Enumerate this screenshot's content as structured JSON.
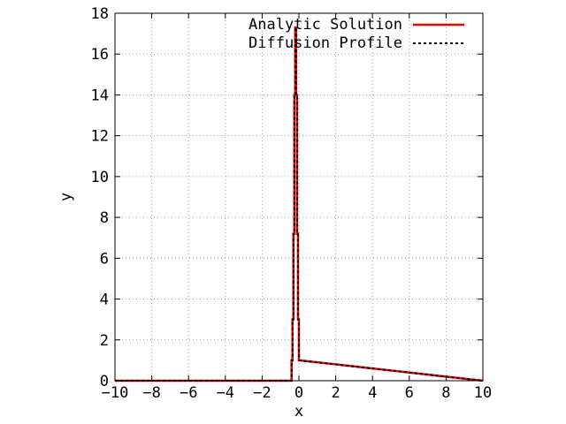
{
  "chart_data": {
    "type": "line",
    "title": "",
    "xlabel": "x",
    "ylabel": "y",
    "xlim": [
      -10,
      10
    ],
    "ylim": [
      0,
      18
    ],
    "xticks": [
      -10,
      -8,
      -6,
      -4,
      -2,
      0,
      2,
      4,
      6,
      8,
      10
    ],
    "yticks": [
      0,
      2,
      4,
      6,
      8,
      10,
      12,
      14,
      16,
      18
    ],
    "xtick_labels": [
      "−10",
      "−8",
      "−6",
      "−4",
      "−2",
      "0",
      "2",
      "4",
      "6",
      "8",
      "10"
    ],
    "ytick_labels": [
      "0",
      "2",
      "4",
      "6",
      "8",
      "10",
      "12",
      "14",
      "16",
      "18"
    ],
    "grid": true,
    "legend_position": "top-right",
    "series": [
      {
        "name": "Analytic Solution",
        "color": "#ee0000",
        "style": "solid",
        "x": [
          -10,
          -0.4,
          -0.4,
          -0.35,
          -0.35,
          -0.3,
          -0.3,
          -0.25,
          -0.25,
          -0.2,
          -0.2,
          -0.15,
          -0.15,
          -0.1,
          -0.1,
          -0.05,
          -0.05,
          0.0,
          0.0,
          10
        ],
        "y": [
          0,
          0,
          1.0,
          1.0,
          3.0,
          3.0,
          7.2,
          7.2,
          14.0,
          14.0,
          17.3,
          17.3,
          14.0,
          14.0,
          7.2,
          7.2,
          3.0,
          3.0,
          1.0,
          0
        ]
      },
      {
        "name": "Diffusion Profile",
        "color": "#000000",
        "style": "dashed",
        "x": [
          -10,
          -0.4,
          -0.4,
          -0.35,
          -0.35,
          -0.3,
          -0.3,
          -0.25,
          -0.25,
          -0.2,
          -0.2,
          -0.15,
          -0.15,
          -0.1,
          -0.1,
          -0.05,
          -0.05,
          0.0,
          0.0,
          10
        ],
        "y": [
          0,
          0,
          1.0,
          1.0,
          3.0,
          3.0,
          7.2,
          7.2,
          14.0,
          14.0,
          17.3,
          17.3,
          14.0,
          14.0,
          7.2,
          7.2,
          3.0,
          3.0,
          1.0,
          0
        ]
      }
    ]
  }
}
